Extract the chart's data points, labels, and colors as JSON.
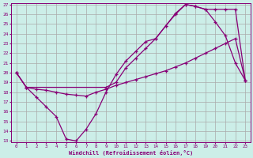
{
  "xlabel": "Windchill (Refroidissement éolien,°C)",
  "bg_color": "#cceee8",
  "grid_color": "#aaaaaa",
  "line_color": "#880077",
  "xlim": [
    -0.5,
    23.5
  ],
  "ylim": [
    13,
    27
  ],
  "xticks": [
    0,
    1,
    2,
    3,
    4,
    5,
    6,
    7,
    8,
    9,
    10,
    11,
    12,
    13,
    14,
    15,
    16,
    17,
    18,
    19,
    20,
    21,
    22,
    23
  ],
  "yticks": [
    13,
    14,
    15,
    16,
    17,
    18,
    19,
    20,
    21,
    22,
    23,
    24,
    25,
    26,
    27
  ],
  "curve1_x": [
    0,
    1,
    2,
    3,
    4,
    5,
    6,
    7,
    8,
    9,
    10,
    11,
    12,
    13,
    14,
    15,
    16,
    17,
    18,
    19,
    20,
    21,
    22,
    23
  ],
  "curve1_y": [
    20.0,
    18.5,
    17.5,
    16.5,
    15.5,
    13.2,
    13.0,
    14.2,
    15.8,
    18.0,
    19.8,
    21.2,
    22.2,
    23.2,
    23.5,
    24.8,
    26.1,
    27.0,
    26.8,
    26.5,
    25.2,
    23.8,
    21.0,
    19.2
  ],
  "curve2_x": [
    0,
    1,
    2,
    3,
    4,
    5,
    6,
    7,
    8,
    9,
    10,
    11,
    12,
    13,
    14,
    15,
    16,
    17,
    18,
    19,
    20,
    21,
    22,
    23
  ],
  "curve2_y": [
    20.0,
    18.5,
    18.3,
    18.2,
    18.0,
    17.8,
    17.7,
    17.6,
    18.0,
    18.3,
    18.7,
    19.0,
    19.3,
    19.6,
    19.9,
    20.2,
    20.6,
    21.0,
    21.5,
    22.0,
    22.5,
    23.0,
    23.5,
    19.2
  ],
  "curve3_x": [
    0,
    1,
    9,
    10,
    11,
    12,
    13,
    14,
    15,
    16,
    17,
    18,
    19,
    20,
    21,
    22,
    23
  ],
  "curve3_y": [
    20.0,
    18.5,
    18.5,
    19.0,
    20.5,
    21.5,
    22.5,
    23.5,
    24.8,
    26.0,
    27.0,
    26.8,
    26.5,
    26.5,
    26.5,
    26.5,
    19.2
  ]
}
